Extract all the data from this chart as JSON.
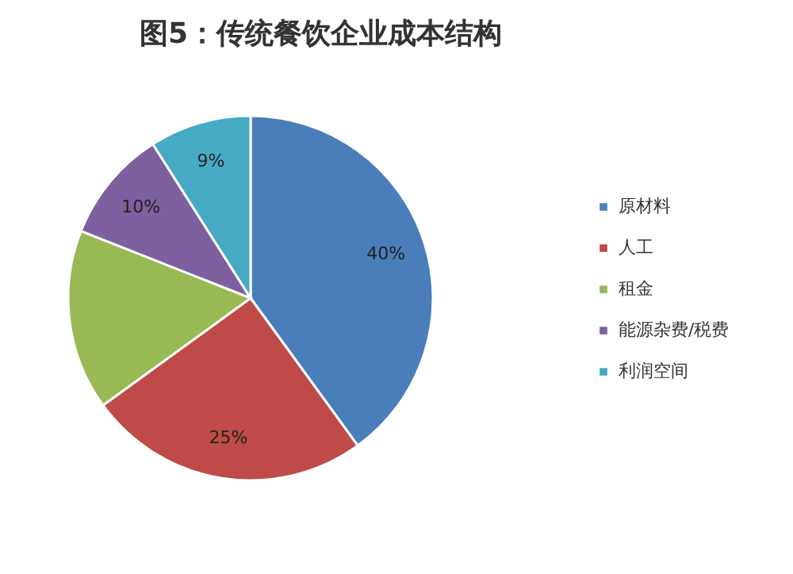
{
  "chart_data": {
    "type": "pie",
    "title": "图5：传统餐饮企业成本结构",
    "categories": [
      "原材料",
      "人工",
      "租金",
      "能源杂费/税费",
      "利润空间"
    ],
    "values": [
      40,
      25,
      16,
      10,
      9
    ],
    "colors": [
      "#4a7ebb",
      "#be4b48",
      "#98b954",
      "#7d60a0",
      "#46aac5"
    ],
    "value_labels": [
      "40%",
      "25%",
      null,
      "10%",
      "9%"
    ],
    "legend": "right"
  }
}
